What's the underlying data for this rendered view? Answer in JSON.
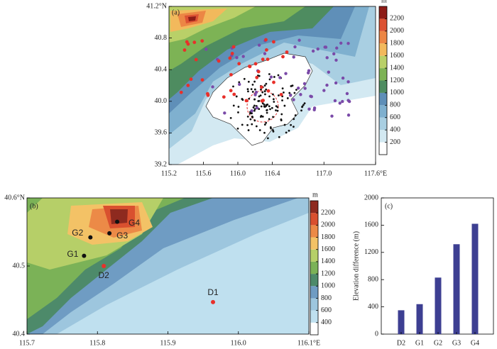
{
  "chart_data": [
    {
      "type": "contour-map",
      "label": "(a)",
      "xlim": [
        115.2,
        117.6
      ],
      "ylim": [
        39.2,
        41.2
      ],
      "xticks": [
        115.2,
        115.6,
        {
          "value": 116,
          "label": "116.0"
        },
        116.4,
        {
          "value": 117,
          "label": "117.0"
        },
        {
          "value": 117.6,
          "label": "117.6°E"
        }
      ],
      "yticks": [
        39.2,
        39.6,
        {
          "value": 40,
          "label": "40.0"
        },
        40.4,
        40.8,
        {
          "value": 41.2,
          "label": "41.2°N"
        }
      ],
      "colorbar": {
        "title": "m",
        "levels": [
          200,
          400,
          600,
          800,
          1000,
          1200,
          1400,
          1600,
          1800,
          2000,
          2200
        ],
        "colors": [
          "#ffffff",
          "#d3e9f2",
          "#a9cfe2",
          "#7fb0cf",
          "#5f8fb8",
          "#4e8c60",
          "#7db355",
          "#b9d068",
          "#f2b95c",
          "#ec8645",
          "#dc5233",
          "#8e1d18"
        ]
      }
    },
    {
      "type": "contour-map",
      "label": "(b)",
      "xlim": [
        115.7,
        116.1
      ],
      "ylim": [
        40.4,
        40.6
      ],
      "xticks": [
        115.7,
        115.8,
        115.9,
        {
          "value": 116,
          "label": "116.0"
        },
        {
          "value": 116.1,
          "label": "116.1°E"
        }
      ],
      "yticks": [
        40.4,
        40.5,
        {
          "value": 40.6,
          "label": "40.6°N"
        }
      ],
      "colorbar": {
        "title": "m",
        "levels": [
          400,
          600,
          800,
          1000,
          1200,
          1400,
          1600,
          1800,
          2000,
          2200
        ],
        "colors": [
          "#ffffff",
          "#bfe0ef",
          "#9dc6de",
          "#6f9cc3",
          "#4d8a6a",
          "#7bb257",
          "#b6cf68",
          "#f3c266",
          "#ec8a47",
          "#d9502f",
          "#8e2a1f"
        ]
      },
      "points": {
        "labels": [
          "D1",
          "D2",
          "G1",
          "G2",
          "G3",
          "G4"
        ],
        "x": [
          115.964,
          115.809,
          115.781,
          115.79,
          115.817,
          115.828
        ],
        "y": [
          40.447,
          40.5,
          40.515,
          40.542,
          40.548,
          40.565
        ],
        "colors": [
          "#e8302a",
          "#e8302a",
          "#111111",
          "#111111",
          "#111111",
          "#111111"
        ]
      }
    },
    {
      "type": "bar",
      "label": "(c)",
      "categories": [
        "D2",
        "G1",
        "G2",
        "G3",
        "G4"
      ],
      "values": [
        350,
        440,
        830,
        1320,
        1620
      ],
      "color": "#3d3f92",
      "ylabel": "Elevation difference (m)",
      "ylim": [
        0,
        2000
      ],
      "yticks": [
        0,
        400,
        800,
        1200,
        1600,
        2000
      ]
    }
  ]
}
